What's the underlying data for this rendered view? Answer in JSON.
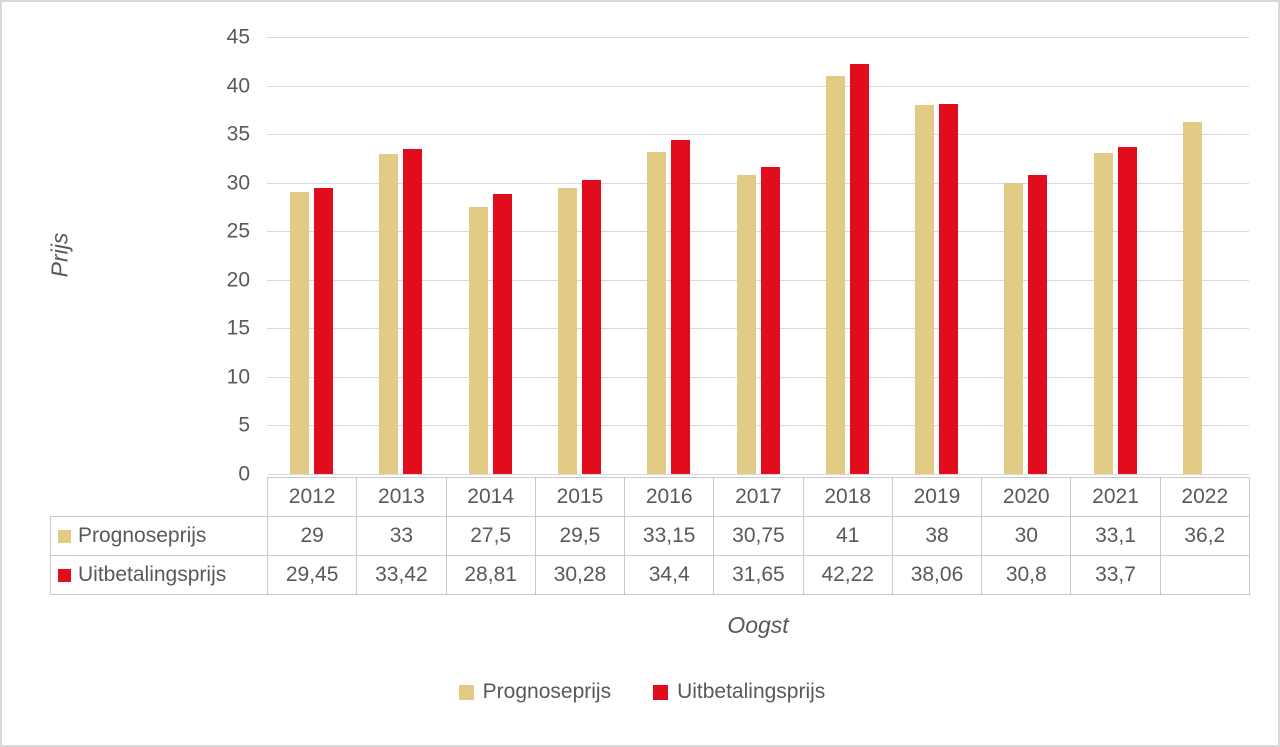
{
  "colors": {
    "prognoseprijs": "#e2cc85",
    "uitbetalingsprijs": "#e10d1c",
    "text": "#595959",
    "gridline": "#d9d9d9",
    "table_border": "#c9c9c9",
    "background": "#ffffff"
  },
  "chart_data": {
    "type": "bar",
    "title": "",
    "xlabel": "Oogst",
    "ylabel": "Prijs",
    "ylim": [
      0,
      45
    ],
    "ytick_step": 5,
    "yticks": [
      "0",
      "5",
      "10",
      "15",
      "20",
      "25",
      "30",
      "35",
      "40",
      "45"
    ],
    "grid": true,
    "legend_position": "bottom",
    "has_data_table": true,
    "categories": [
      "2012",
      "2013",
      "2014",
      "2015",
      "2016",
      "2017",
      "2018",
      "2019",
      "2020",
      "2021",
      "2022"
    ],
    "series": [
      {
        "name": "Prognoseprijs",
        "color": "#e2cc85",
        "values": [
          29,
          33,
          27.5,
          29.5,
          33.15,
          30.75,
          41,
          38,
          30,
          33.1,
          36.2
        ],
        "display": [
          "29",
          "33",
          "27,5",
          "29,5",
          "33,15",
          "30,75",
          "41",
          "38",
          "30",
          "33,1",
          "36,2"
        ]
      },
      {
        "name": "Uitbetalingsprijs",
        "color": "#e10d1c",
        "values": [
          29.45,
          33.42,
          28.81,
          30.28,
          34.4,
          31.65,
          42.22,
          38.06,
          30.8,
          33.7,
          null
        ],
        "display": [
          "29,45",
          "33,42",
          "28,81",
          "30,28",
          "34,4",
          "31,65",
          "42,22",
          "38,06",
          "30,8",
          "33,7",
          ""
        ]
      }
    ]
  }
}
